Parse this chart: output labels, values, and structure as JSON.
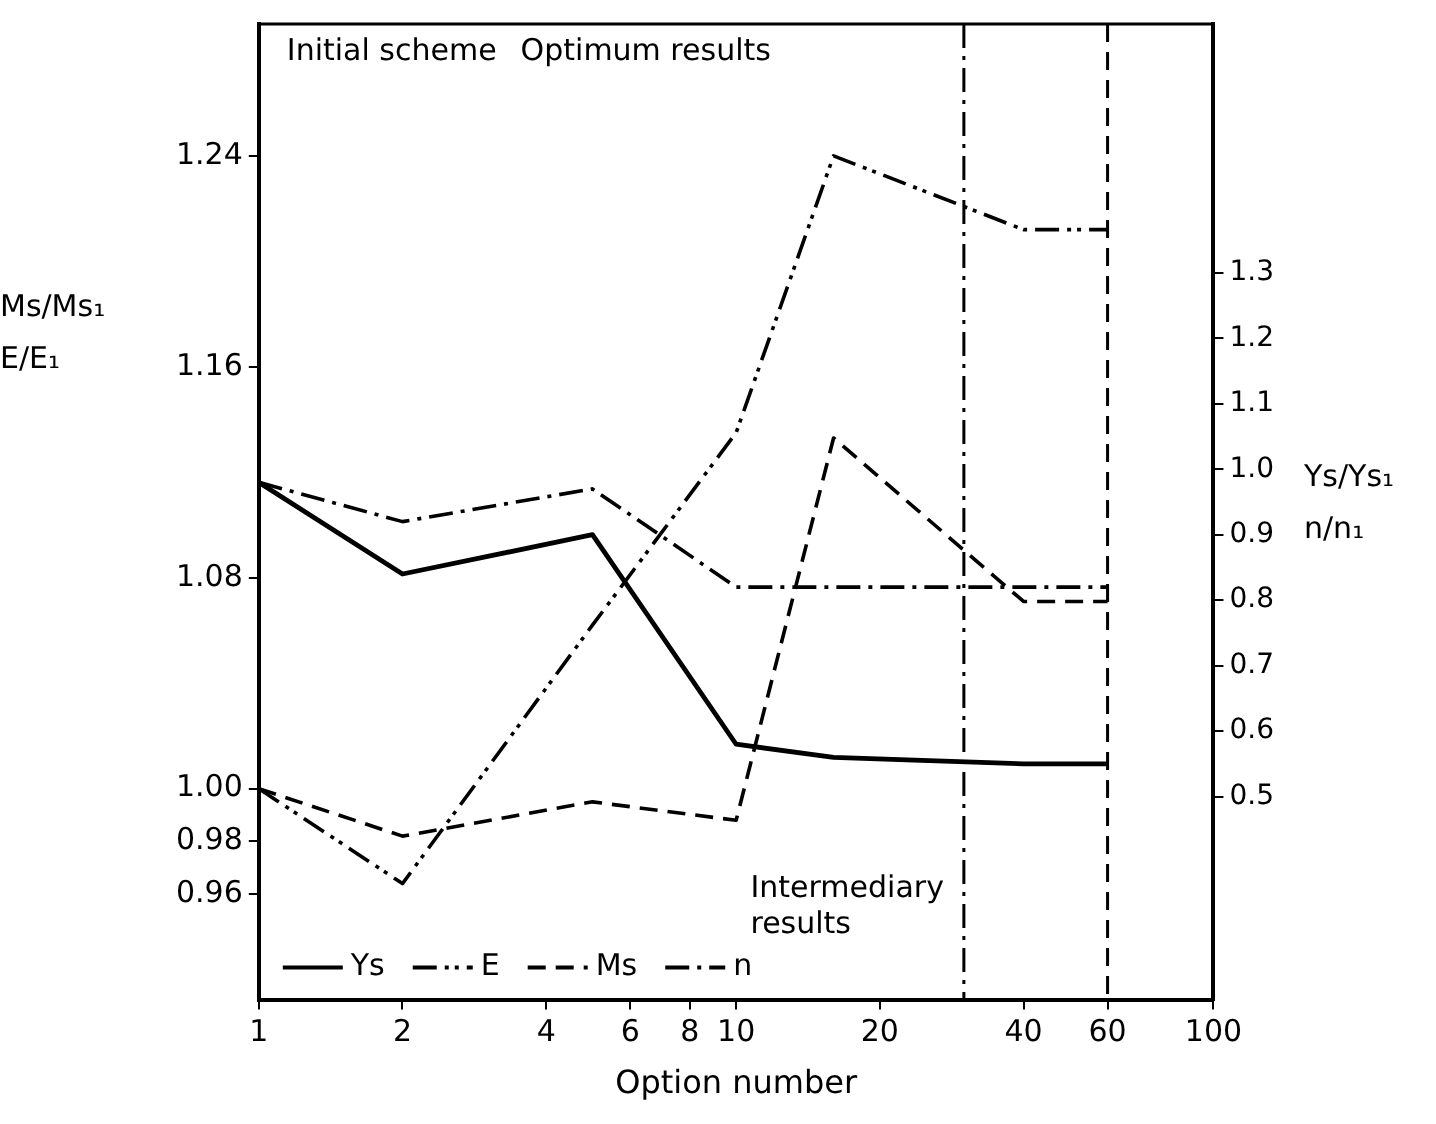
{
  "chart_data": {
    "type": "line",
    "xlabel": "Option number",
    "ylabel": "Ms/Ms₁ E/E₁",
    "y2label": "Ys/Ys₁ n/n₁",
    "annotations": [
      "Initial scheme",
      "Optimum results"
    ],
    "log": "x",
    "legend": "bottom left",
    "xlim": [
      1,
      100
    ],
    "xticks": [
      1,
      2,
      4,
      6,
      8,
      10,
      20,
      40,
      60,
      100
    ],
    "ylim": [
      0.92,
      1.29
    ],
    "yticks": [
      0.96,
      0.98,
      {
        "value": 1.0,
        "label": "1.00"
      },
      1.08,
      1.16,
      1.24
    ],
    "y2lim": [
      0.19,
      1.68
    ],
    "y2ticks": [
      0.5,
      0.6,
      0.7,
      0.8,
      0.9,
      {
        "value": 1.0,
        "label": "1.0"
      },
      1.1,
      1.2,
      1.3
    ],
    "ref_lines": [
      {
        "axis": "x",
        "value": 30,
        "label": "Intermediary results",
        "line_style": "dashdot"
      },
      {
        "axis": "x",
        "value": 60,
        "line_style": "dashed"
      }
    ],
    "series": [
      {
        "name": "Ys",
        "color": "#000000",
        "axis": "y2",
        "line_style": "solid",
        "x": [
          1,
          2,
          5,
          10,
          16,
          40,
          60
        ],
        "values": [
          0.98,
          0.84,
          0.9,
          0.58,
          0.56,
          0.55,
          0.55
        ]
      },
      {
        "name": "E",
        "color": "#000000",
        "line_style": "dashdotdot",
        "x": [
          1,
          2,
          5,
          10,
          16,
          40,
          60
        ],
        "values": [
          1.0,
          0.964,
          1.062,
          1.135,
          1.24,
          1.212,
          1.212
        ]
      },
      {
        "name": "Ms",
        "color": "#000000",
        "line_style": "dashed",
        "x": [
          1,
          2,
          5,
          10,
          16,
          40,
          60
        ],
        "values": [
          1.0,
          0.982,
          0.995,
          0.988,
          1.133,
          1.071,
          1.071
        ]
      },
      {
        "name": "n",
        "color": "#000000",
        "axis": "y2",
        "line_style": "dashdot",
        "x": [
          1,
          2,
          5,
          10,
          60
        ],
        "values": [
          0.98,
          0.92,
          0.97,
          0.82,
          0.82
        ]
      }
    ]
  }
}
